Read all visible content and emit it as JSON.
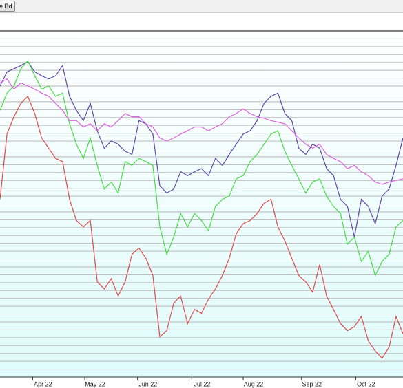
{
  "toolbar": {
    "button": "e Bd"
  },
  "chart_data": {
    "type": "line",
    "x": [
      0,
      1,
      2,
      3,
      4,
      5,
      6,
      7,
      8,
      9,
      10,
      11,
      12,
      13,
      14,
      15,
      16,
      17,
      18,
      19,
      20,
      21,
      22,
      23,
      24,
      25,
      26,
      27,
      28,
      29,
      30,
      31,
      32,
      33,
      34,
      35,
      36,
      37,
      38,
      39,
      40,
      41,
      42,
      43,
      44,
      45,
      46,
      47,
      48,
      49,
      50,
      51,
      52,
      53,
      54,
      55,
      56,
      57,
      58
    ],
    "xlim": [
      0,
      58
    ],
    "xticks": [
      {
        "value": 4.7,
        "label": "Apr 22"
      },
      {
        "value": 12.2,
        "label": "May 22"
      },
      {
        "value": 19.8,
        "label": "Jun 22"
      },
      {
        "value": 27.6,
        "label": "Jul 22"
      },
      {
        "value": 35.0,
        "label": "Aug 22"
      },
      {
        "value": 43.4,
        "label": "Sep 22"
      },
      {
        "value": 51.2,
        "label": "Oct 22"
      }
    ],
    "ylim": [
      0,
      44
    ],
    "yticks": [
      0,
      1,
      2,
      3,
      4,
      5,
      6,
      7,
      8,
      9,
      10,
      11,
      12,
      13,
      14,
      15,
      16,
      17,
      18,
      19,
      20,
      21,
      22,
      23,
      24,
      25,
      26,
      27,
      28,
      29,
      30,
      31,
      32,
      33,
      34,
      35,
      36,
      37,
      38,
      39,
      40,
      41,
      42,
      43
    ],
    "grid": true,
    "series": [
      {
        "color": "#5a48a8",
        "values": [
          37.0,
          38.8,
          39.2,
          39.6,
          40.1,
          38.8,
          38.3,
          37.9,
          38.3,
          39.6,
          35.7,
          33.9,
          32.6,
          34.8,
          31.3,
          29.1,
          30.0,
          29.6,
          28.7,
          28.3,
          32.6,
          32.2,
          30.9,
          24.3,
          23.4,
          23.9,
          26.1,
          25.6,
          26.1,
          26.5,
          25.6,
          27.8,
          26.9,
          28.3,
          29.6,
          30.9,
          31.3,
          32.6,
          34.8,
          35.7,
          36.1,
          33.5,
          32.6,
          29.1,
          28.3,
          29.6,
          29.1,
          26.5,
          25.6,
          22.6,
          21.7,
          17.8,
          22.6,
          21.7,
          19.5,
          23.0,
          23.9,
          26.9,
          30.4
        ]
      },
      {
        "color": "#44dd44",
        "values": [
          33.9,
          36.1,
          37.0,
          39.2,
          40.2,
          38.3,
          36.6,
          37.0,
          35.7,
          36.1,
          32.2,
          29.6,
          27.8,
          30.4,
          26.9,
          23.9,
          24.8,
          23.4,
          27.4,
          26.9,
          27.8,
          27.4,
          26.9,
          19.1,
          15.6,
          17.8,
          20.8,
          19.1,
          20.8,
          19.9,
          18.6,
          21.7,
          22.6,
          23.0,
          25.2,
          25.6,
          27.4,
          28.3,
          29.6,
          30.9,
          31.3,
          28.7,
          26.9,
          25.2,
          23.4,
          24.8,
          25.2,
          23.0,
          21.7,
          20.8,
          16.9,
          17.8,
          14.7,
          16.0,
          12.9,
          14.7,
          15.6,
          19.1,
          19.9
        ]
      },
      {
        "color": "#e04848",
        "values": [
          22.6,
          30.9,
          33.1,
          34.8,
          35.7,
          33.5,
          30.4,
          29.1,
          27.8,
          27.4,
          22.6,
          19.9,
          19.1,
          19.9,
          12.1,
          11.2,
          12.5,
          10.3,
          12.1,
          15.6,
          16.4,
          15.1,
          12.9,
          5.1,
          5.9,
          9.4,
          10.3,
          6.8,
          8.6,
          8.1,
          9.9,
          11.2,
          12.9,
          15.1,
          18.2,
          19.5,
          19.9,
          20.8,
          22.1,
          22.6,
          19.1,
          17.3,
          15.1,
          12.9,
          12.1,
          10.8,
          14.3,
          10.3,
          8.6,
          6.8,
          5.9,
          6.4,
          7.7,
          4.6,
          3.3,
          2.4,
          3.8,
          7.7,
          5.5
        ]
      },
      {
        "color": "#e060e0",
        "values": [
          37.4,
          37.9,
          36.6,
          37.4,
          37.0,
          36.6,
          36.1,
          35.7,
          34.8,
          33.9,
          32.6,
          32.6,
          31.8,
          32.2,
          31.3,
          32.2,
          31.8,
          32.6,
          33.5,
          33.1,
          33.1,
          32.2,
          31.8,
          30.4,
          30.0,
          30.4,
          30.9,
          31.3,
          31.8,
          31.8,
          31.3,
          31.8,
          32.2,
          33.1,
          33.5,
          34.1,
          33.5,
          33.1,
          32.9,
          32.6,
          32.4,
          32.2,
          31.3,
          30.4,
          29.6,
          29.1,
          29.6,
          28.3,
          27.8,
          27.4,
          26.5,
          26.9,
          26.1,
          25.6,
          24.8,
          24.5,
          24.8,
          25.0,
          25.2
        ]
      }
    ]
  }
}
